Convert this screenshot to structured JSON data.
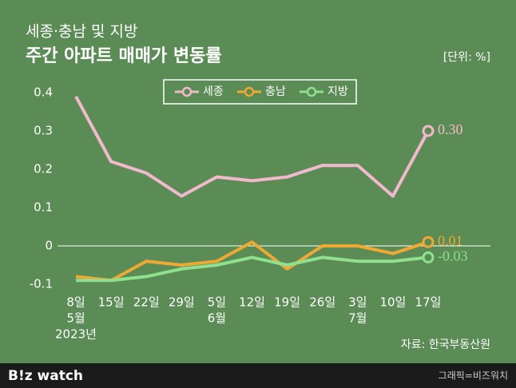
{
  "chart_data": {
    "type": "line",
    "subtitle": "세종·충남 및 지방",
    "title": "주간 아파트 매매가 변동률",
    "unit": "[단위: %]",
    "source": "자료: 한국부동산원",
    "logo": "B!z watch",
    "credit": "그래픽=비즈워치",
    "categories": [
      "8일",
      "15일",
      "22일",
      "29일",
      "5일",
      "12일",
      "19일",
      "26일",
      "3일",
      "10일",
      "17일"
    ],
    "months": [
      "5월",
      null,
      null,
      null,
      "6월",
      null,
      null,
      null,
      "7월",
      null,
      null
    ],
    "year": "2023년",
    "ylim": [
      -0.1,
      0.4
    ],
    "yticks": [
      -0.1,
      0,
      0.1,
      0.2,
      0.3,
      0.4
    ],
    "zero_line": true,
    "legend": "top",
    "series": [
      {
        "name": "세종",
        "color": "#f2b9cd",
        "values": [
          0.39,
          0.22,
          0.19,
          0.13,
          0.18,
          0.17,
          0.18,
          0.21,
          0.21,
          0.13,
          0.3
        ],
        "value_labels": [
          null,
          null,
          null,
          null,
          null,
          null,
          null,
          null,
          null,
          null,
          "0.30"
        ]
      },
      {
        "name": "충남",
        "color": "#f0a834",
        "values": [
          -0.08,
          -0.09,
          -0.04,
          -0.05,
          -0.04,
          0.01,
          -0.06,
          0,
          0,
          -0.02,
          0.01
        ],
        "value_labels": [
          null,
          null,
          null,
          null,
          null,
          null,
          null,
          null,
          null,
          null,
          "0.01"
        ]
      },
      {
        "name": "지방",
        "color": "#8fe08f",
        "values": [
          -0.09,
          -0.09,
          -0.08,
          -0.06,
          -0.05,
          -0.03,
          -0.05,
          -0.03,
          -0.04,
          -0.04,
          -0.03
        ],
        "value_labels": [
          null,
          null,
          null,
          null,
          null,
          null,
          null,
          null,
          null,
          null,
          "-0.03"
        ]
      }
    ]
  }
}
